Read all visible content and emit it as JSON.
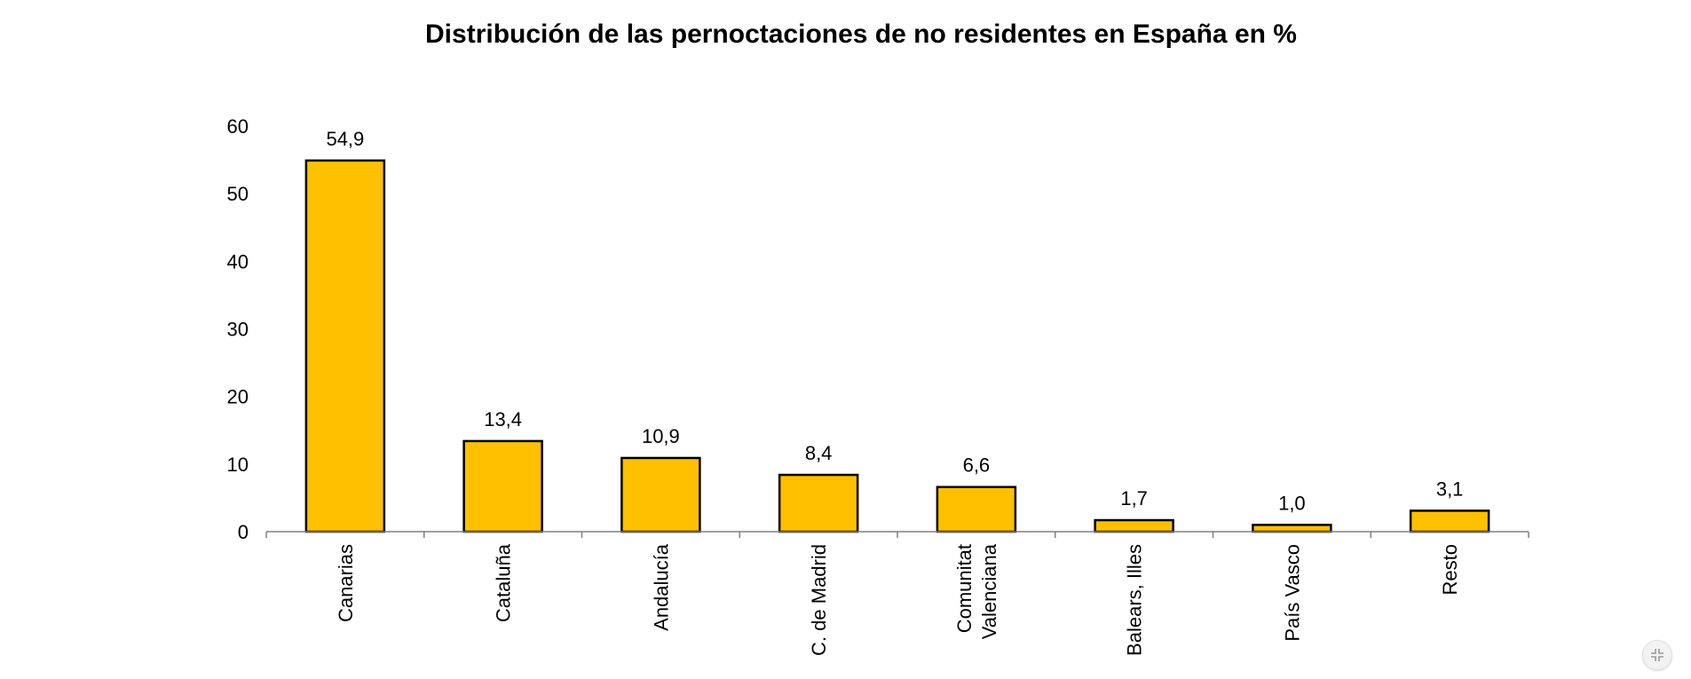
{
  "chart_data": {
    "type": "bar",
    "title": "Distribución de las pernoctaciones de no residentes en España en %",
    "categories": [
      [
        "Canarias"
      ],
      [
        "Cataluña"
      ],
      [
        "Andalucía"
      ],
      [
        "C. de Madrid"
      ],
      [
        "Comunitat",
        "Valenciana"
      ],
      [
        "Balears, Illes"
      ],
      [
        "País Vasco"
      ],
      [
        "Resto"
      ]
    ],
    "values": [
      54.9,
      13.4,
      10.9,
      8.4,
      6.6,
      1.7,
      1.0,
      3.1
    ],
    "value_labels": [
      "54,9",
      "13,4",
      "10,9",
      "8,4",
      "6,6",
      "1,7",
      "1,0",
      "3,1"
    ],
    "ylim": [
      0,
      60
    ],
    "yticks": [
      0,
      10,
      20,
      30,
      40,
      50,
      60
    ],
    "xlabel": "",
    "ylabel": "",
    "grid": false,
    "legend": "none",
    "bar_color": "#FFC000",
    "bar_edge_color": "#000000"
  },
  "controls": {
    "collapse_icon": "collapse-icon"
  }
}
